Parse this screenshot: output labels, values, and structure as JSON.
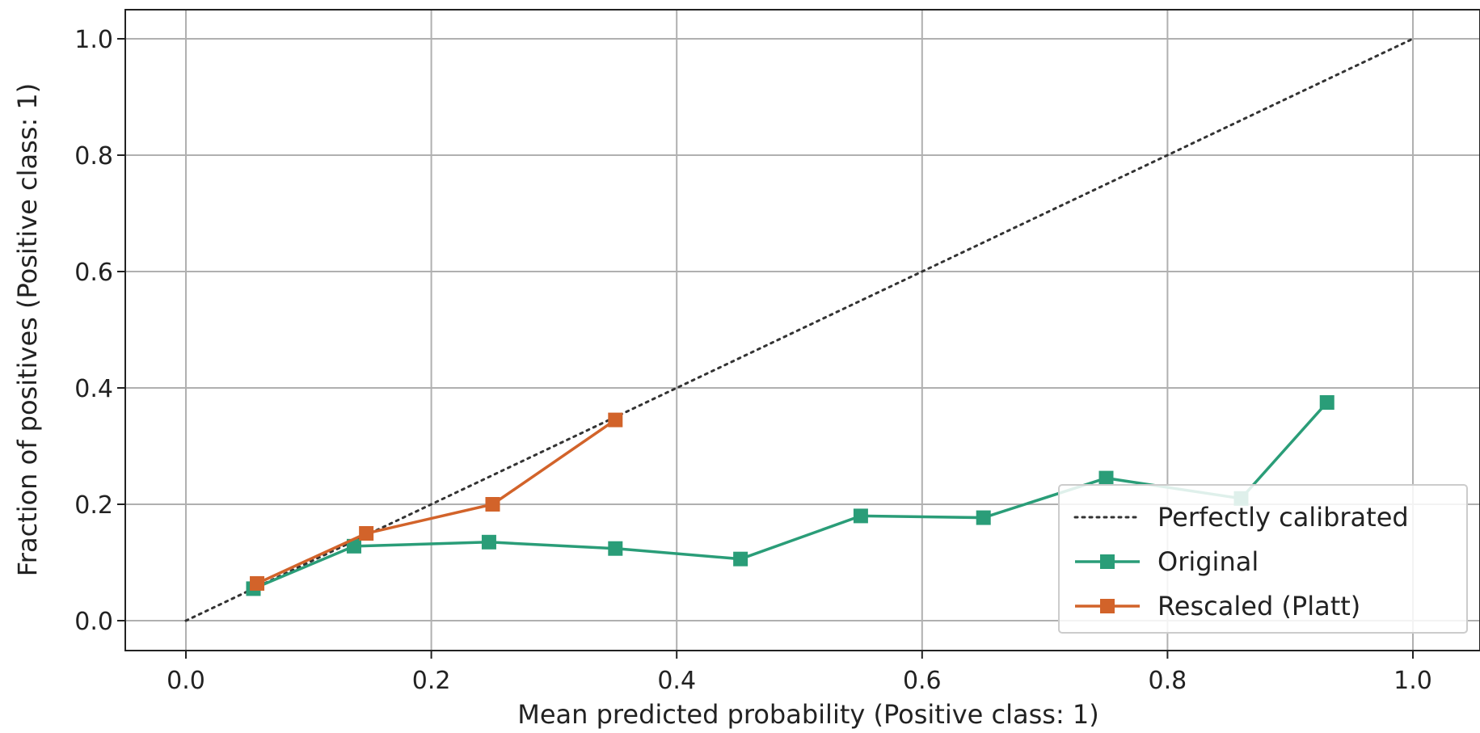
{
  "chart_data": {
    "type": "line",
    "title": "",
    "xlabel": "Mean predicted probability (Positive class: 1)",
    "ylabel": "Fraction of positives (Positive class: 1)",
    "xlim": [
      -0.05,
      1.05
    ],
    "ylim": [
      -0.05,
      1.05
    ],
    "xticks": [
      0.0,
      0.2,
      0.4,
      0.6,
      0.8,
      1.0
    ],
    "yticks": [
      0.0,
      0.2,
      0.4,
      0.6,
      0.8,
      1.0
    ],
    "xtick_labels": [
      "0.0",
      "0.2",
      "0.4",
      "0.6",
      "0.8",
      "1.0"
    ],
    "ytick_labels": [
      "0.0",
      "0.2",
      "0.4",
      "0.6",
      "0.8",
      "1.0"
    ],
    "grid": true,
    "legend_position": "lower-right",
    "series": [
      {
        "name": "Perfectly calibrated",
        "style": "dotted",
        "marker": "none",
        "color": "#333333",
        "x": [
          0.0,
          1.0
        ],
        "y": [
          0.0,
          1.0
        ]
      },
      {
        "name": "Original",
        "style": "solid",
        "marker": "square",
        "color": "#2a9d78",
        "x": [
          0.055,
          0.137,
          0.247,
          0.35,
          0.452,
          0.55,
          0.65,
          0.75,
          0.86,
          0.93
        ],
        "y": [
          0.055,
          0.128,
          0.135,
          0.124,
          0.106,
          0.18,
          0.177,
          0.245,
          0.21,
          0.375
        ]
      },
      {
        "name": "Rescaled (Platt)",
        "style": "solid",
        "marker": "square",
        "color": "#d2632a",
        "x": [
          0.058,
          0.147,
          0.25,
          0.35
        ],
        "y": [
          0.064,
          0.15,
          0.2,
          0.345
        ]
      }
    ]
  }
}
